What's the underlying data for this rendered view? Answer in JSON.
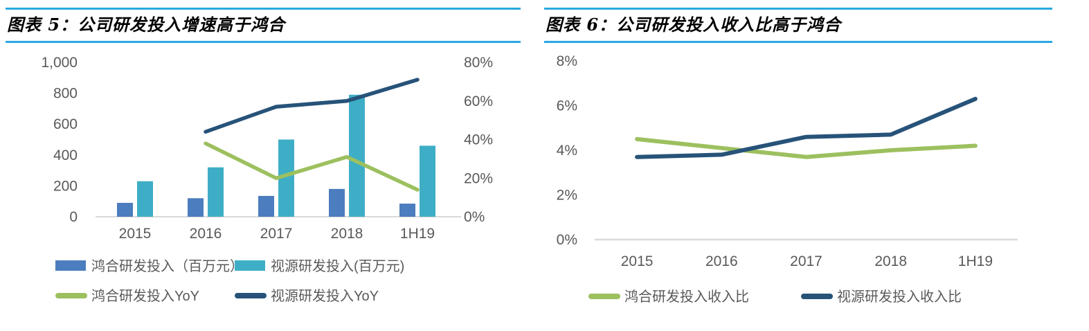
{
  "colors": {
    "title_rule": "#29A9E1",
    "axis_text": "#595959",
    "legend_text": "#595959",
    "axis_line": "#D9D9D9"
  },
  "chart_data": [
    {
      "type": "bar",
      "title": "图表 5：公司研发投入增速高于鸿合",
      "categories": [
        "2015",
        "2016",
        "2017",
        "2018",
        "1H19"
      ],
      "series": [
        {
          "name": "鸿合研发投入（百万元）",
          "kind": "bar",
          "axis": "left",
          "color": "#4C7DBE",
          "values": [
            90,
            120,
            135,
            180,
            85
          ]
        },
        {
          "name": "视源研发投入(百万元)",
          "kind": "bar",
          "axis": "left",
          "color": "#3EAEC6",
          "values": [
            230,
            320,
            500,
            790,
            460
          ]
        },
        {
          "name": "鸿合研发投入YoY",
          "kind": "line",
          "axis": "right",
          "color": "#9DC05F",
          "values": [
            null,
            38,
            20,
            31,
            14
          ]
        },
        {
          "name": "视源研发投入YoY",
          "kind": "line",
          "axis": "right",
          "color": "#275379",
          "values": [
            null,
            44,
            57,
            60,
            71
          ]
        }
      ],
      "left_axis": {
        "min": 0,
        "max": 1000,
        "ticks": [
          "1,000",
          "800",
          "600",
          "400",
          "200",
          "0"
        ]
      },
      "right_axis": {
        "min": 0,
        "max": 80,
        "ticks": [
          "80%",
          "60%",
          "40%",
          "20%",
          "0%"
        ]
      },
      "grid": "off",
      "legend_position": "bottom"
    },
    {
      "type": "line",
      "title": "图表 6：公司研发投入收入比高于鸿合",
      "categories": [
        "2015",
        "2016",
        "2017",
        "2018",
        "1H19"
      ],
      "series": [
        {
          "name": "鸿合研发投入收入比",
          "color": "#9DC05F",
          "values": [
            4.5,
            4.1,
            3.7,
            4.0,
            4.2
          ]
        },
        {
          "name": "视源研发投入收入比",
          "color": "#275379",
          "values": [
            3.7,
            3.8,
            4.6,
            4.7,
            6.3
          ]
        }
      ],
      "y_axis": {
        "min": 0,
        "max": 8,
        "ticks": [
          "8%",
          "6%",
          "4%",
          "2%",
          "0%"
        ]
      },
      "grid": "off",
      "legend_position": "bottom"
    }
  ]
}
